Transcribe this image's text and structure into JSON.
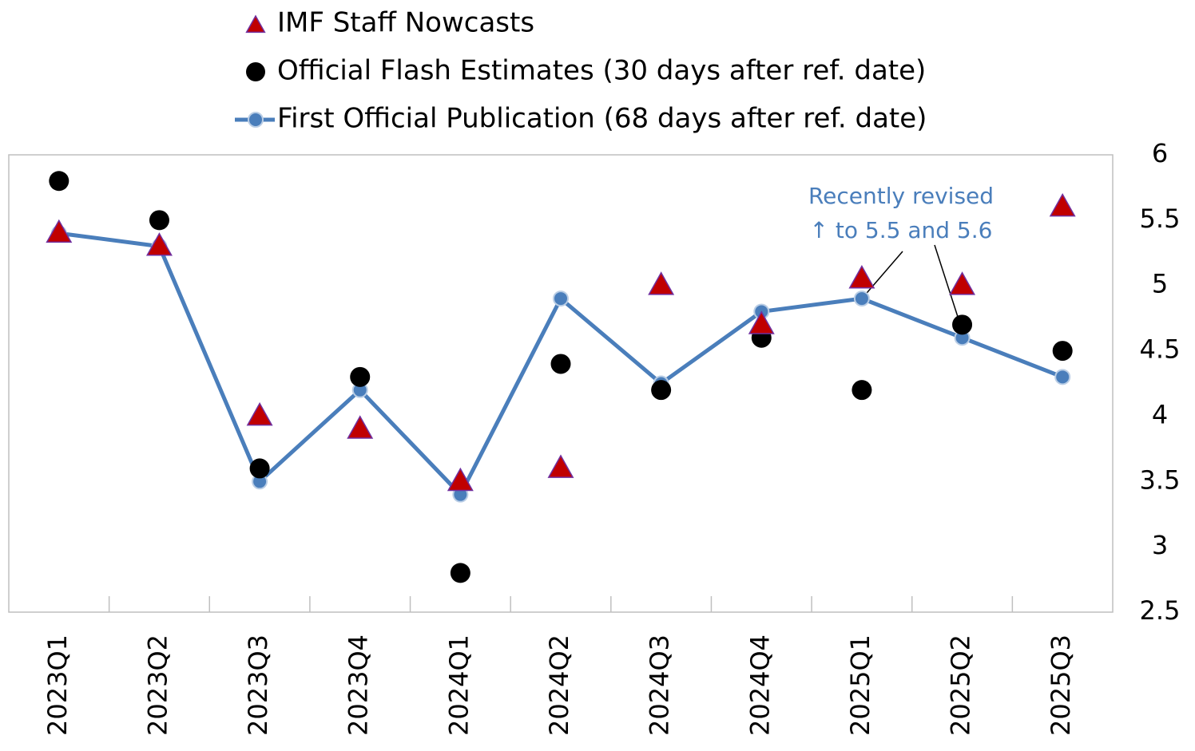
{
  "chart_data": {
    "type": "line",
    "categories": [
      "2023Q1",
      "2023Q2",
      "2023Q3",
      "2023Q4",
      "2024Q1",
      "2024Q2",
      "2024Q3",
      "2024Q4",
      "2025Q1",
      "2025Q2",
      "2025Q3"
    ],
    "series": [
      {
        "name": "IMF Staff Nowcasts",
        "color": "#c00000",
        "marker": "triangle",
        "values": [
          5.4,
          5.3,
          4.0,
          3.9,
          3.5,
          3.6,
          5.0,
          4.7,
          5.05,
          5.0,
          5.6
        ]
      },
      {
        "name": "Official Flash Estimates (30 days after ref. date)",
        "color": "#000000",
        "marker": "circle",
        "values": [
          5.8,
          5.5,
          3.6,
          4.3,
          2.8,
          4.4,
          4.2,
          4.6,
          4.2,
          4.7,
          4.5
        ]
      },
      {
        "name": "First Official Publication (68 days after ref. date)",
        "color": "#4a7ebb",
        "marker": "line",
        "values": [
          5.4,
          5.3,
          3.5,
          4.2,
          3.4,
          4.9,
          4.25,
          4.8,
          4.9,
          4.6,
          4.3
        ]
      }
    ],
    "annotation": [
      "Recently revised",
      "↑ to 5.5 and 5.6"
    ],
    "ylim": [
      2.5,
      6
    ],
    "yticks": [
      6,
      5.5,
      5,
      4.5,
      4,
      3.5,
      3,
      2.5
    ]
  }
}
